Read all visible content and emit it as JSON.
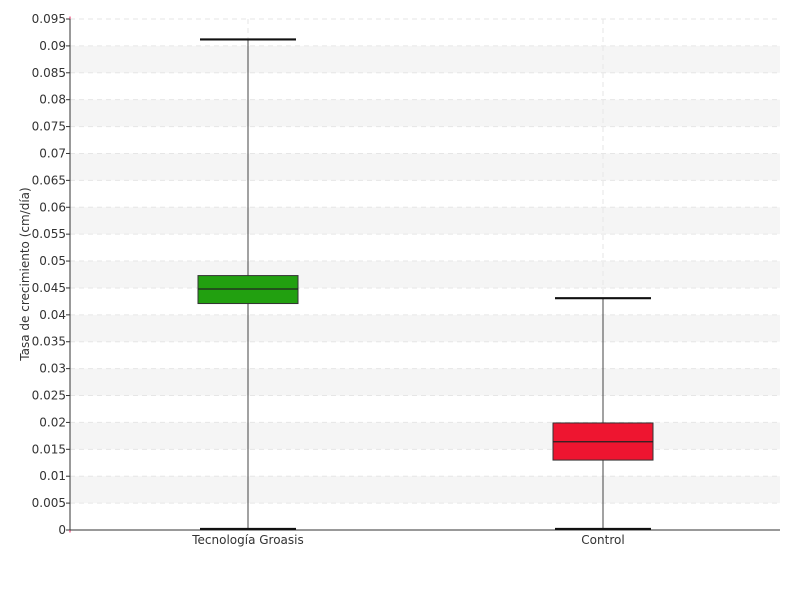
{
  "chart_data": {
    "type": "boxplot",
    "title": "",
    "xlabel": "",
    "ylabel": "Tasa de crecimiento (cm/día)",
    "ylim": [
      0,
      0.095
    ],
    "yticks": [
      "0",
      "0.005",
      "0.01",
      "0.015",
      "0.02",
      "0.025",
      "0.03",
      "0.035",
      "0.04",
      "0.045",
      "0.05",
      "0.055",
      "0.06",
      "0.065",
      "0.07",
      "0.075",
      "0.08",
      "0.085",
      "0.09",
      "0.095"
    ],
    "grid": true,
    "categories": [
      "Tecnología Groasis",
      "Control"
    ],
    "boxes": [
      {
        "category": "Tecnología Groasis",
        "min": 0.0002,
        "q1": 0.0421,
        "median": 0.0448,
        "q3": 0.0473,
        "max": 0.0912,
        "color": "#22a010"
      },
      {
        "category": "Control",
        "min": 0.0002,
        "q1": 0.013,
        "median": 0.0164,
        "q3": 0.0199,
        "max": 0.0431,
        "color": "#ee1530"
      }
    ]
  }
}
